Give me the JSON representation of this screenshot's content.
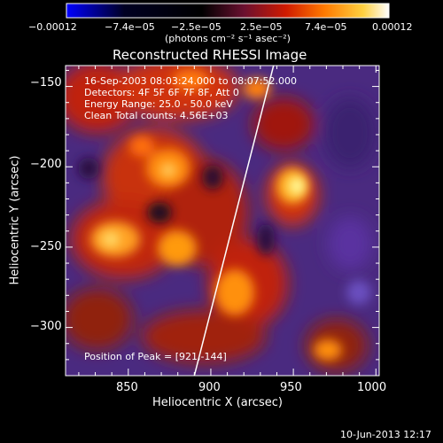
{
  "colorbar": {
    "ticks": [
      "−0.00012",
      "−7.4e−05",
      "−2.5e−05",
      "2.5e−05",
      "7.4e−05",
      "0.00012"
    ],
    "units": "(photons cm⁻² s⁻¹ asec⁻²)",
    "stops": [
      "#0000ff",
      "#000000",
      "#4a1070",
      "#b01010",
      "#ff4000",
      "#ff9a00",
      "#ffff80",
      "#ffffff"
    ]
  },
  "image": {
    "title": "Reconstructed RHESSI Image",
    "info_lines": [
      "16-Sep-2003 08:03:24.000 to 08:07:52.000",
      "Detectors: 4F 5F 6F 7F 8F, Att 0",
      "Energy Range: 25.0 - 50.0 keV",
      "Clean     Total counts: 4.56E+03"
    ],
    "peak_text": "Position of Peak = [921,-144]",
    "xlabel": "Heliocentric X (arcsec)",
    "ylabel": "Heliocentric Y (arcsec)",
    "x_ticks": [
      "850",
      "900",
      "950",
      "1000"
    ],
    "y_ticks": [
      "−150",
      "−200",
      "−250",
      "−300"
    ],
    "xlim": [
      812,
      1002
    ],
    "ylim": [
      -330,
      -137
    ],
    "limb_line": [
      [
        890,
        -330
      ],
      [
        938,
        -137
      ]
    ]
  },
  "timestamp": "10-Jun-2013 12:17"
}
